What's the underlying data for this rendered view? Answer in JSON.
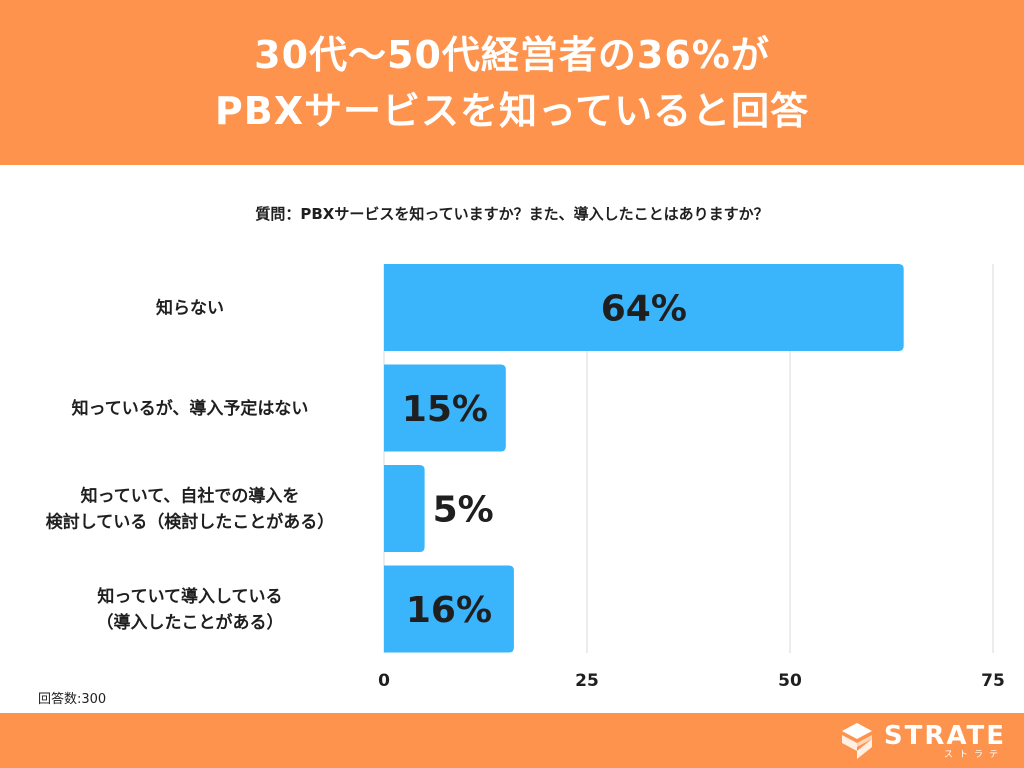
{
  "colors": {
    "accent": "#fd934d",
    "bar": "#3ab4fb",
    "grid": "#d9d9d9"
  },
  "header": {
    "title_line1": "30代〜50代経営者の36%が",
    "title_line2": "PBXサービスを知っていると回答"
  },
  "question": "質問：PBXサービスを知っていますか？また、導入したことはありますか？",
  "respondents": "回答数:300",
  "brand": {
    "name": "STRATE",
    "kana": "ストラテ",
    "icon": "logo-s-mark"
  },
  "chart_data": {
    "type": "bar",
    "orientation": "horizontal",
    "categories": [
      [
        "知らない"
      ],
      [
        "知っているが、導入予定はない"
      ],
      [
        "知っていて、自社での導入を",
        "検討している（検討したことがある）"
      ],
      [
        "知っていて導入している",
        "（導入したことがある）"
      ]
    ],
    "values": [
      64,
      15,
      5,
      16
    ],
    "data_labels": [
      "64%",
      "15%",
      "5%",
      "16%"
    ],
    "xticks": [
      0,
      25,
      50,
      75
    ],
    "xtick_labels": [
      "0",
      "25",
      "50",
      "75"
    ],
    "xlim": [
      0,
      75
    ],
    "grid": true
  }
}
